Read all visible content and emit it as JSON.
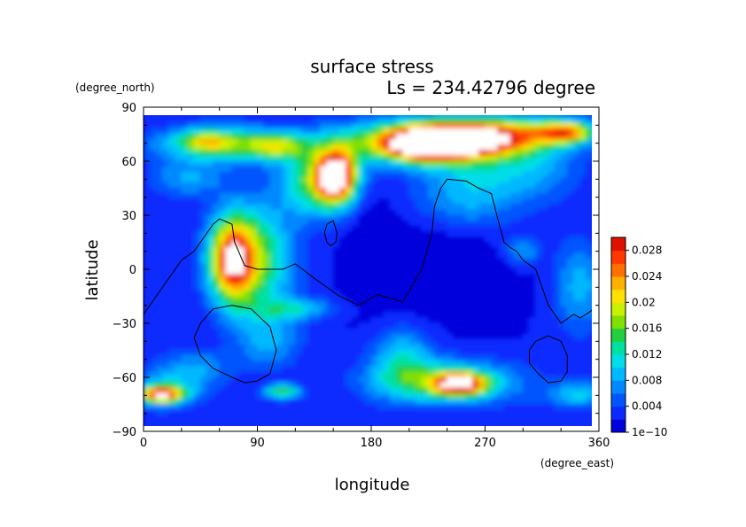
{
  "chart_data": {
    "type": "heatmap",
    "title": "surface stress",
    "subtitle": "Ls = 234.42796 degree",
    "xlabel": "longitude",
    "ylabel": "latitude",
    "x_units": "(degree_east)",
    "y_units": "(degree_north)",
    "xlim": [
      0,
      360
    ],
    "ylim": [
      -90,
      90
    ],
    "x_ticks": [
      "0",
      "90",
      "180",
      "270",
      "360"
    ],
    "y_ticks": [
      "90",
      "60",
      "30",
      "0",
      "−30",
      "−60",
      "−90"
    ],
    "colorbar": {
      "min": 0,
      "max": 0.03,
      "labels": [
        "0.028",
        "0.024",
        "0.02",
        "0.016",
        "0.012",
        "0.008",
        "0.004",
        "1e−10"
      ],
      "colors": [
        "#0000dd",
        "#0a2aff",
        "#0055ff",
        "#0088ff",
        "#00b8ff",
        "#00dde8",
        "#00e0a0",
        "#20d040",
        "#80e000",
        "#c8f000",
        "#ffe000",
        "#ffb000",
        "#ff7000",
        "#ff3800",
        "#e01000"
      ]
    },
    "background_level": 0.002,
    "hotspots": [
      {
        "lon": 235,
        "lat": 71,
        "rx": 48,
        "ry": 9,
        "value": 0.03
      },
      {
        "lon": 222,
        "lat": 67,
        "rx": 28,
        "ry": 7,
        "value": 0.01
      },
      {
        "lon": 225,
        "lat": 70,
        "rx": 75,
        "ry": 13,
        "value": 0.012
      },
      {
        "lon": 290,
        "lat": 75,
        "rx": 50,
        "ry": 9,
        "value": 0.014
      },
      {
        "lon": 335,
        "lat": 76,
        "rx": 22,
        "ry": 6,
        "value": 0.018
      },
      {
        "lon": 65,
        "lat": 69,
        "rx": 55,
        "ry": 10,
        "value": 0.012
      },
      {
        "lon": 50,
        "lat": 71,
        "rx": 20,
        "ry": 6,
        "value": 0.01
      },
      {
        "lon": 105,
        "lat": 68,
        "rx": 24,
        "ry": 7,
        "value": 0.01
      },
      {
        "lon": 153,
        "lat": 52,
        "rx": 15,
        "ry": 14,
        "value": 0.028
      },
      {
        "lon": 138,
        "lat": 48,
        "rx": 28,
        "ry": 18,
        "value": 0.014
      },
      {
        "lon": 70,
        "lat": 5,
        "rx": 17,
        "ry": 22,
        "value": 0.022
      },
      {
        "lon": 88,
        "lat": 5,
        "rx": 30,
        "ry": 30,
        "value": 0.014
      },
      {
        "lon": 35,
        "lat": 50,
        "rx": 30,
        "ry": 10,
        "value": 0.006
      },
      {
        "lon": 255,
        "lat": 42,
        "rx": 40,
        "ry": 22,
        "value": 0.007
      },
      {
        "lon": 305,
        "lat": 55,
        "rx": 40,
        "ry": 18,
        "value": 0.006
      },
      {
        "lon": 300,
        "lat": 10,
        "rx": 15,
        "ry": 8,
        "value": 0.006
      },
      {
        "lon": 345,
        "lat": -10,
        "rx": 20,
        "ry": 25,
        "value": 0.007
      },
      {
        "lon": 250,
        "lat": -64,
        "rx": 20,
        "ry": 6,
        "value": 0.024
      },
      {
        "lon": 240,
        "lat": -63,
        "rx": 58,
        "ry": 12,
        "value": 0.012
      },
      {
        "lon": 205,
        "lat": -50,
        "rx": 25,
        "ry": 18,
        "value": 0.008
      },
      {
        "lon": 15,
        "lat": -70,
        "rx": 15,
        "ry": 4,
        "value": 0.022
      },
      {
        "lon": 15,
        "lat": -68,
        "rx": 30,
        "ry": 9,
        "value": 0.01
      },
      {
        "lon": 110,
        "lat": -68,
        "rx": 14,
        "ry": 4,
        "value": 0.014
      },
      {
        "lon": 345,
        "lat": -70,
        "rx": 25,
        "ry": 7,
        "value": 0.008
      },
      {
        "lon": 40,
        "lat": -55,
        "rx": 30,
        "ry": 10,
        "value": 0.006
      },
      {
        "lon": 120,
        "lat": -22,
        "rx": 30,
        "ry": 6,
        "value": 0.008
      },
      {
        "lon": 100,
        "lat": -40,
        "rx": 25,
        "ry": 15,
        "value": 0.006
      }
    ],
    "holes": [
      {
        "lon": 240,
        "lat": 0,
        "rx": 45,
        "ry": 25,
        "value": -0.004
      },
      {
        "lon": 180,
        "lat": 10,
        "rx": 20,
        "ry": 35,
        "value": -0.002
      }
    ],
    "contours": [
      {
        "name": "continent-main",
        "lon": [
          0,
          10,
          20,
          30,
          40,
          55,
          60,
          70,
          72,
          80,
          90,
          110,
          120,
          135,
          155,
          170,
          185,
          205,
          210,
          220,
          228,
          230,
          235,
          240,
          255,
          265,
          275,
          280,
          285,
          290,
          295,
          300,
          310,
          315,
          320,
          325,
          330,
          340,
          345,
          350,
          360
        ],
        "lat": [
          -25,
          -15,
          -5,
          5,
          10,
          25,
          28,
          25,
          15,
          2,
          0,
          0,
          3,
          -5,
          -15,
          -20,
          -14,
          -18,
          -12,
          0,
          20,
          35,
          45,
          50,
          49,
          45,
          42,
          28,
          15,
          12,
          10,
          5,
          0,
          -10,
          -20,
          -25,
          -30,
          -25,
          -27,
          -25,
          -20
        ]
      },
      {
        "name": "islet",
        "lon": [
          145,
          150,
          153,
          152,
          148,
          145,
          143,
          145
        ],
        "lat": [
          25,
          27,
          20,
          15,
          13,
          15,
          20,
          25
        ]
      },
      {
        "name": "basin-west",
        "lon": [
          45,
          55,
          70,
          85,
          100,
          105,
          100,
          90,
          80,
          70,
          55,
          45,
          40,
          45
        ],
        "lat": [
          -30,
          -22,
          -20,
          -22,
          -32,
          -45,
          -58,
          -62,
          -63,
          -60,
          -55,
          -48,
          -38,
          -30
        ]
      },
      {
        "name": "basin-east",
        "lon": [
          310,
          320,
          330,
          335,
          335,
          330,
          320,
          312,
          305,
          305,
          310
        ],
        "lat": [
          -40,
          -37,
          -40,
          -48,
          -57,
          -62,
          -63,
          -58,
          -52,
          -45,
          -40
        ]
      }
    ]
  }
}
